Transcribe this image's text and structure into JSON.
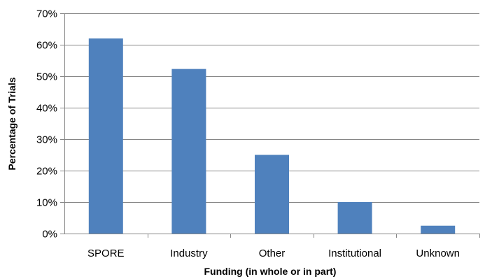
{
  "chart_data": {
    "type": "bar",
    "title": "",
    "xlabel": "Funding (in whole or in part)",
    "ylabel": "Percentage of Trials",
    "categories": [
      "SPORE",
      "Industry",
      "Other",
      "Institutional",
      "Unknown"
    ],
    "values": [
      62,
      52.3,
      25,
      10,
      2.5
    ],
    "ylim": [
      0,
      70
    ],
    "yticks": [
      0,
      10,
      20,
      30,
      40,
      50,
      60,
      70
    ],
    "ytick_labels": [
      "0%",
      "10%",
      "20%",
      "30%",
      "40%",
      "50%",
      "60%",
      "70%"
    ],
    "grid": true,
    "legend": "none",
    "bar_color": "#4F81BD"
  }
}
